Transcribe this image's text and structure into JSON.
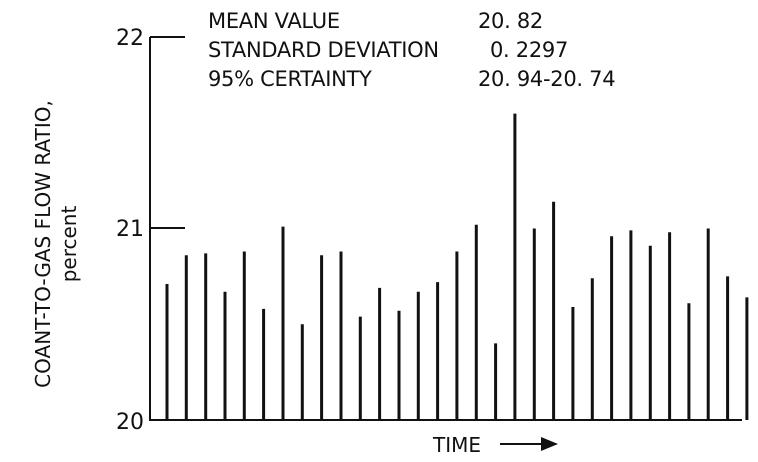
{
  "chart_data": {
    "type": "bar",
    "xlabel": "TIME",
    "ylabel": "COANT-TO-GAS FLOW RATIO,",
    "ylabel_unit": "percent",
    "ylim": [
      20,
      22
    ],
    "yticks": [
      "20",
      "21",
      "22"
    ],
    "grid": false,
    "stats": {
      "mean_label": "MEAN VALUE",
      "mean_value": "20. 82",
      "std_label": "STANDARD DEVIATION",
      "std_value": "0. 2297",
      "certainty_label": "95% CERTAINTY",
      "certainty_value": "20. 94-20. 74"
    },
    "values": [
      20.71,
      20.86,
      20.87,
      20.67,
      20.88,
      20.58,
      21.01,
      20.5,
      20.86,
      20.88,
      20.54,
      20.69,
      20.57,
      20.67,
      20.72,
      20.88,
      21.02,
      20.4,
      21.6,
      21.0,
      21.14,
      20.59,
      20.74,
      20.96,
      20.99,
      20.91,
      20.98,
      20.61,
      21.0,
      20.75,
      20.64
    ]
  }
}
